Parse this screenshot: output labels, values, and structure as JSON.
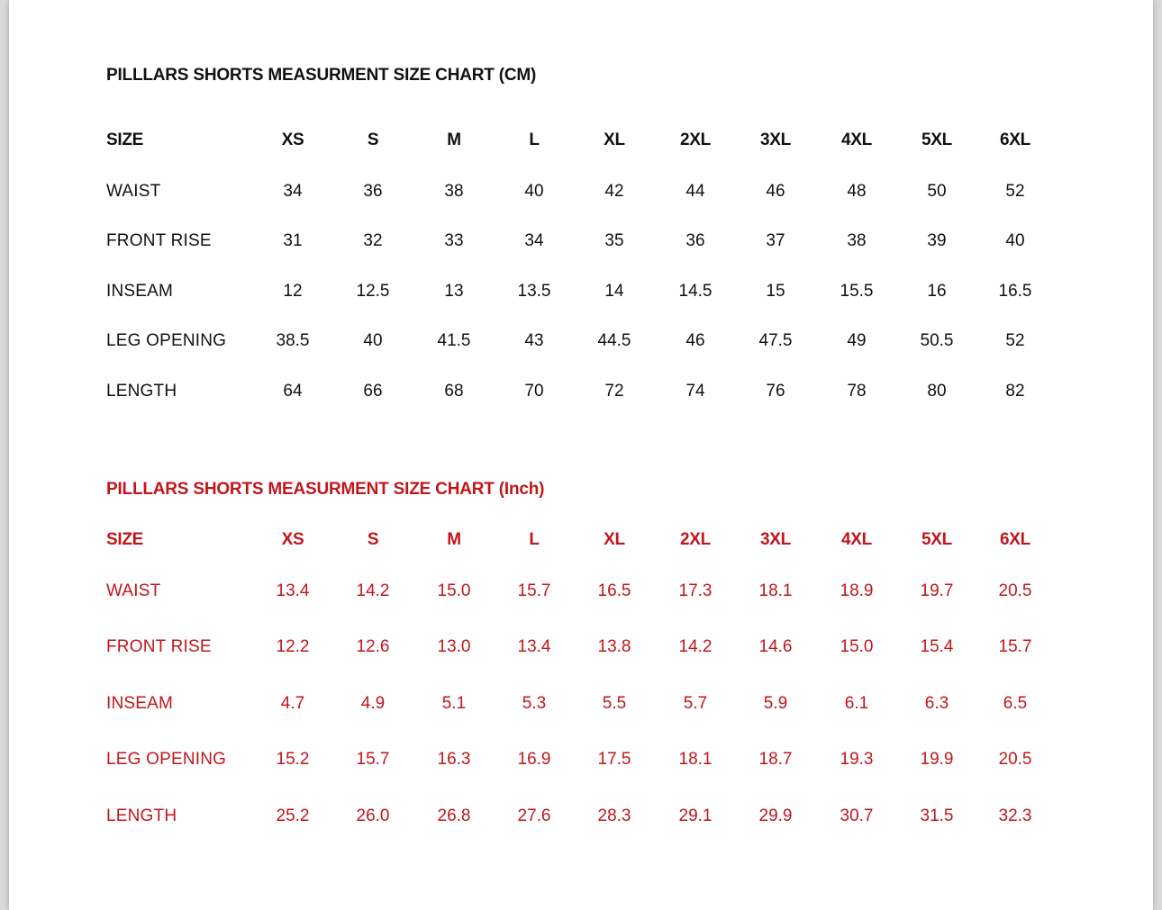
{
  "colors": {
    "cm": "#111111",
    "inch": "#c0161c"
  },
  "tables": [
    {
      "id": "cm",
      "title": "PILLLARS SHORTS MEASURMENT SIZE CHART (CM)",
      "header_label": "SIZE",
      "sizes": [
        "XS",
        "S",
        "M",
        "L",
        "XL",
        "2XL",
        "3XL",
        "4XL",
        "5XL",
        "6XL"
      ],
      "rows": [
        {
          "label": "WAIST",
          "values": [
            "34",
            "36",
            "38",
            "40",
            "42",
            "44",
            "46",
            "48",
            "50",
            "52"
          ]
        },
        {
          "label": "FRONT RISE",
          "values": [
            "31",
            "32",
            "33",
            "34",
            "35",
            "36",
            "37",
            "38",
            "39",
            "40"
          ]
        },
        {
          "label": "INSEAM",
          "values": [
            "12",
            "12.5",
            "13",
            "13.5",
            "14",
            "14.5",
            "15",
            "15.5",
            "16",
            "16.5"
          ]
        },
        {
          "label": "LEG OPENING",
          "values": [
            "38.5",
            "40",
            "41.5",
            "43",
            "44.5",
            "46",
            "47.5",
            "49",
            "50.5",
            "52"
          ]
        },
        {
          "label": "LENGTH",
          "values": [
            "64",
            "66",
            "68",
            "70",
            "72",
            "74",
            "76",
            "78",
            "80",
            "82"
          ]
        }
      ]
    },
    {
      "id": "inch",
      "title": "PILLLARS SHORTS MEASURMENT SIZE CHART (Inch)",
      "header_label": "SIZE",
      "sizes": [
        "XS",
        "S",
        "M",
        "L",
        "XL",
        "2XL",
        "3XL",
        "4XL",
        "5XL",
        "6XL"
      ],
      "rows": [
        {
          "label": "WAIST",
          "values": [
            "13.4",
            "14.2",
            "15.0",
            "15.7",
            "16.5",
            "17.3",
            "18.1",
            "18.9",
            "19.7",
            "20.5"
          ]
        },
        {
          "label": "FRONT RISE",
          "values": [
            "12.2",
            "12.6",
            "13.0",
            "13.4",
            "13.8",
            "14.2",
            "14.6",
            "15.0",
            "15.4",
            "15.7"
          ]
        },
        {
          "label": "INSEAM",
          "values": [
            "4.7",
            "4.9",
            "5.1",
            "5.3",
            "5.5",
            "5.7",
            "5.9",
            "6.1",
            "6.3",
            "6.5"
          ]
        },
        {
          "label": "LEG OPENING",
          "values": [
            "15.2",
            "15.7",
            "16.3",
            "16.9",
            "17.5",
            "18.1",
            "18.7",
            "19.3",
            "19.9",
            "20.5"
          ]
        },
        {
          "label": "LENGTH",
          "values": [
            "25.2",
            "26.0",
            "26.8",
            "27.6",
            "28.3",
            "29.1",
            "29.9",
            "30.7",
            "31.5",
            "32.3"
          ]
        }
      ]
    }
  ]
}
